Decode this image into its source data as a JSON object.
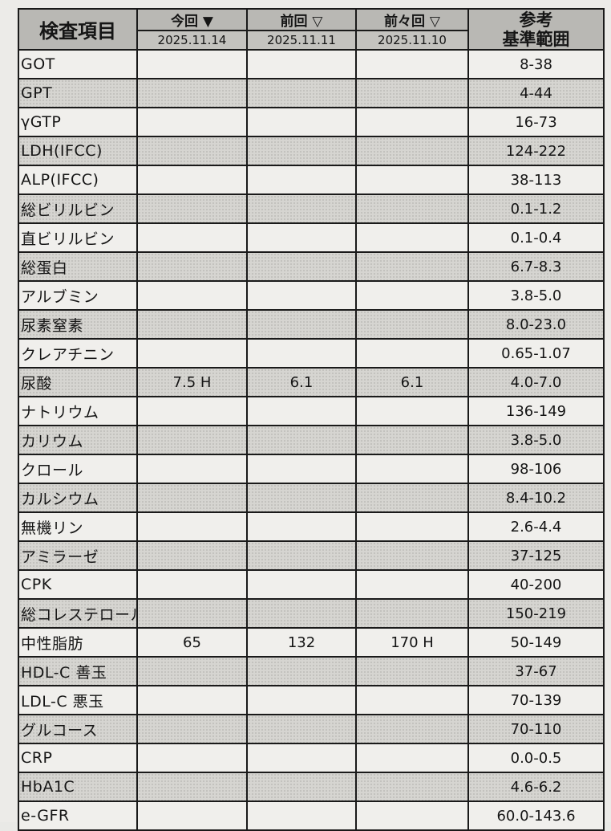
{
  "header": {
    "item": "検査項目",
    "current": {
      "label": "今回",
      "marker": "▼",
      "date": "2025.11.14"
    },
    "previous": {
      "label": "前回",
      "marker": "▽",
      "date": "2025.11.11"
    },
    "before_previous": {
      "label": "前々回",
      "marker": "▽",
      "date": "2025.11.10"
    },
    "reference": {
      "line1": "参考",
      "line2": "基準範囲"
    }
  },
  "rows": [
    {
      "name": "GOT",
      "current": "",
      "previous": "",
      "before": "",
      "ref": "8-38"
    },
    {
      "name": "GPT",
      "current": "",
      "previous": "",
      "before": "",
      "ref": "4-44"
    },
    {
      "name": "γGTP",
      "current": "",
      "previous": "",
      "before": "",
      "ref": "16-73"
    },
    {
      "name": "LDH(IFCC)",
      "current": "",
      "previous": "",
      "before": "",
      "ref": "124-222"
    },
    {
      "name": "ALP(IFCC)",
      "current": "",
      "previous": "",
      "before": "",
      "ref": "38-113"
    },
    {
      "name": "総ビリルビン",
      "current": "",
      "previous": "",
      "before": "",
      "ref": "0.1-1.2"
    },
    {
      "name": "直ビリルビン",
      "current": "",
      "previous": "",
      "before": "",
      "ref": "0.1-0.4"
    },
    {
      "name": "総蛋白",
      "current": "",
      "previous": "",
      "before": "",
      "ref": "6.7-8.3"
    },
    {
      "name": "アルブミン",
      "current": "",
      "previous": "",
      "before": "",
      "ref": "3.8-5.0"
    },
    {
      "name": "尿素窒素",
      "current": "",
      "previous": "",
      "before": "",
      "ref": "8.0-23.0"
    },
    {
      "name": "クレアチニン",
      "current": "",
      "previous": "",
      "before": "",
      "ref": "0.65-1.07"
    },
    {
      "name": "尿酸",
      "current": "7.5 H",
      "previous": "6.1",
      "before": "6.1",
      "ref": "4.0-7.0"
    },
    {
      "name": "ナトリウム",
      "current": "",
      "previous": "",
      "before": "",
      "ref": "136-149"
    },
    {
      "name": "カリウム",
      "current": "",
      "previous": "",
      "before": "",
      "ref": "3.8-5.0"
    },
    {
      "name": "クロール",
      "current": "",
      "previous": "",
      "before": "",
      "ref": "98-106"
    },
    {
      "name": "カルシウム",
      "current": "",
      "previous": "",
      "before": "",
      "ref": "8.4-10.2"
    },
    {
      "name": "無機リン",
      "current": "",
      "previous": "",
      "before": "",
      "ref": "2.6-4.4"
    },
    {
      "name": "アミラーゼ",
      "current": "",
      "previous": "",
      "before": "",
      "ref": "37-125"
    },
    {
      "name": "CPK",
      "current": "",
      "previous": "",
      "before": "",
      "ref": "40-200"
    },
    {
      "name": "総コレステロール",
      "current": "",
      "previous": "",
      "before": "",
      "ref": "150-219"
    },
    {
      "name": "中性脂肪",
      "current": "65",
      "previous": "132",
      "before": "170 H",
      "ref": "50-149"
    },
    {
      "name": "HDL-C 善玉",
      "current": "",
      "previous": "",
      "before": "",
      "ref": "37-67"
    },
    {
      "name": "LDL-C 悪玉",
      "current": "",
      "previous": "",
      "before": "",
      "ref": "70-139"
    },
    {
      "name": "グルコース",
      "current": "",
      "previous": "",
      "before": "",
      "ref": "70-110"
    },
    {
      "name": "CRP",
      "current": "",
      "previous": "",
      "before": "",
      "ref": "0.0-0.5"
    },
    {
      "name": "HbA1C",
      "current": "",
      "previous": "",
      "before": "",
      "ref": "4.6-6.2"
    },
    {
      "name": "e-GFR",
      "current": "",
      "previous": "",
      "before": "",
      "ref": "60.0-143.6"
    }
  ]
}
